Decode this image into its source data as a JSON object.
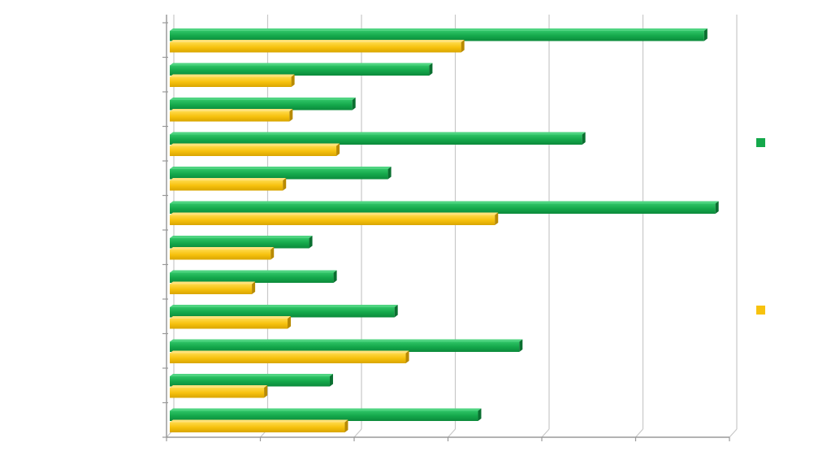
{
  "chart_data": {
    "type": "bar",
    "orientation": "horizontal",
    "layout_3d": true,
    "grid": true,
    "legend_position": "right",
    "title": "",
    "xlabel": "",
    "ylabel": "",
    "xlim": [
      0,
      6
    ],
    "x_ticks": [
      0,
      1,
      2,
      3,
      4,
      5,
      6
    ],
    "show_tick_labels": false,
    "categories": [
      "",
      "",
      "",
      "",
      "",
      "",
      "",
      "",
      "",
      "",
      "",
      ""
    ],
    "series": [
      {
        "color": "#14a84b",
        "values": [
          5.73,
          2.8,
          1.98,
          4.43,
          2.36,
          5.85,
          1.52,
          1.78,
          2.43,
          3.76,
          1.74,
          3.32
        ]
      },
      {
        "color": "#f7c20e",
        "values": [
          3.14,
          1.33,
          1.31,
          1.81,
          1.24,
          3.5,
          1.11,
          0.91,
          1.29,
          2.55,
          1.04,
          1.9
        ]
      }
    ]
  }
}
